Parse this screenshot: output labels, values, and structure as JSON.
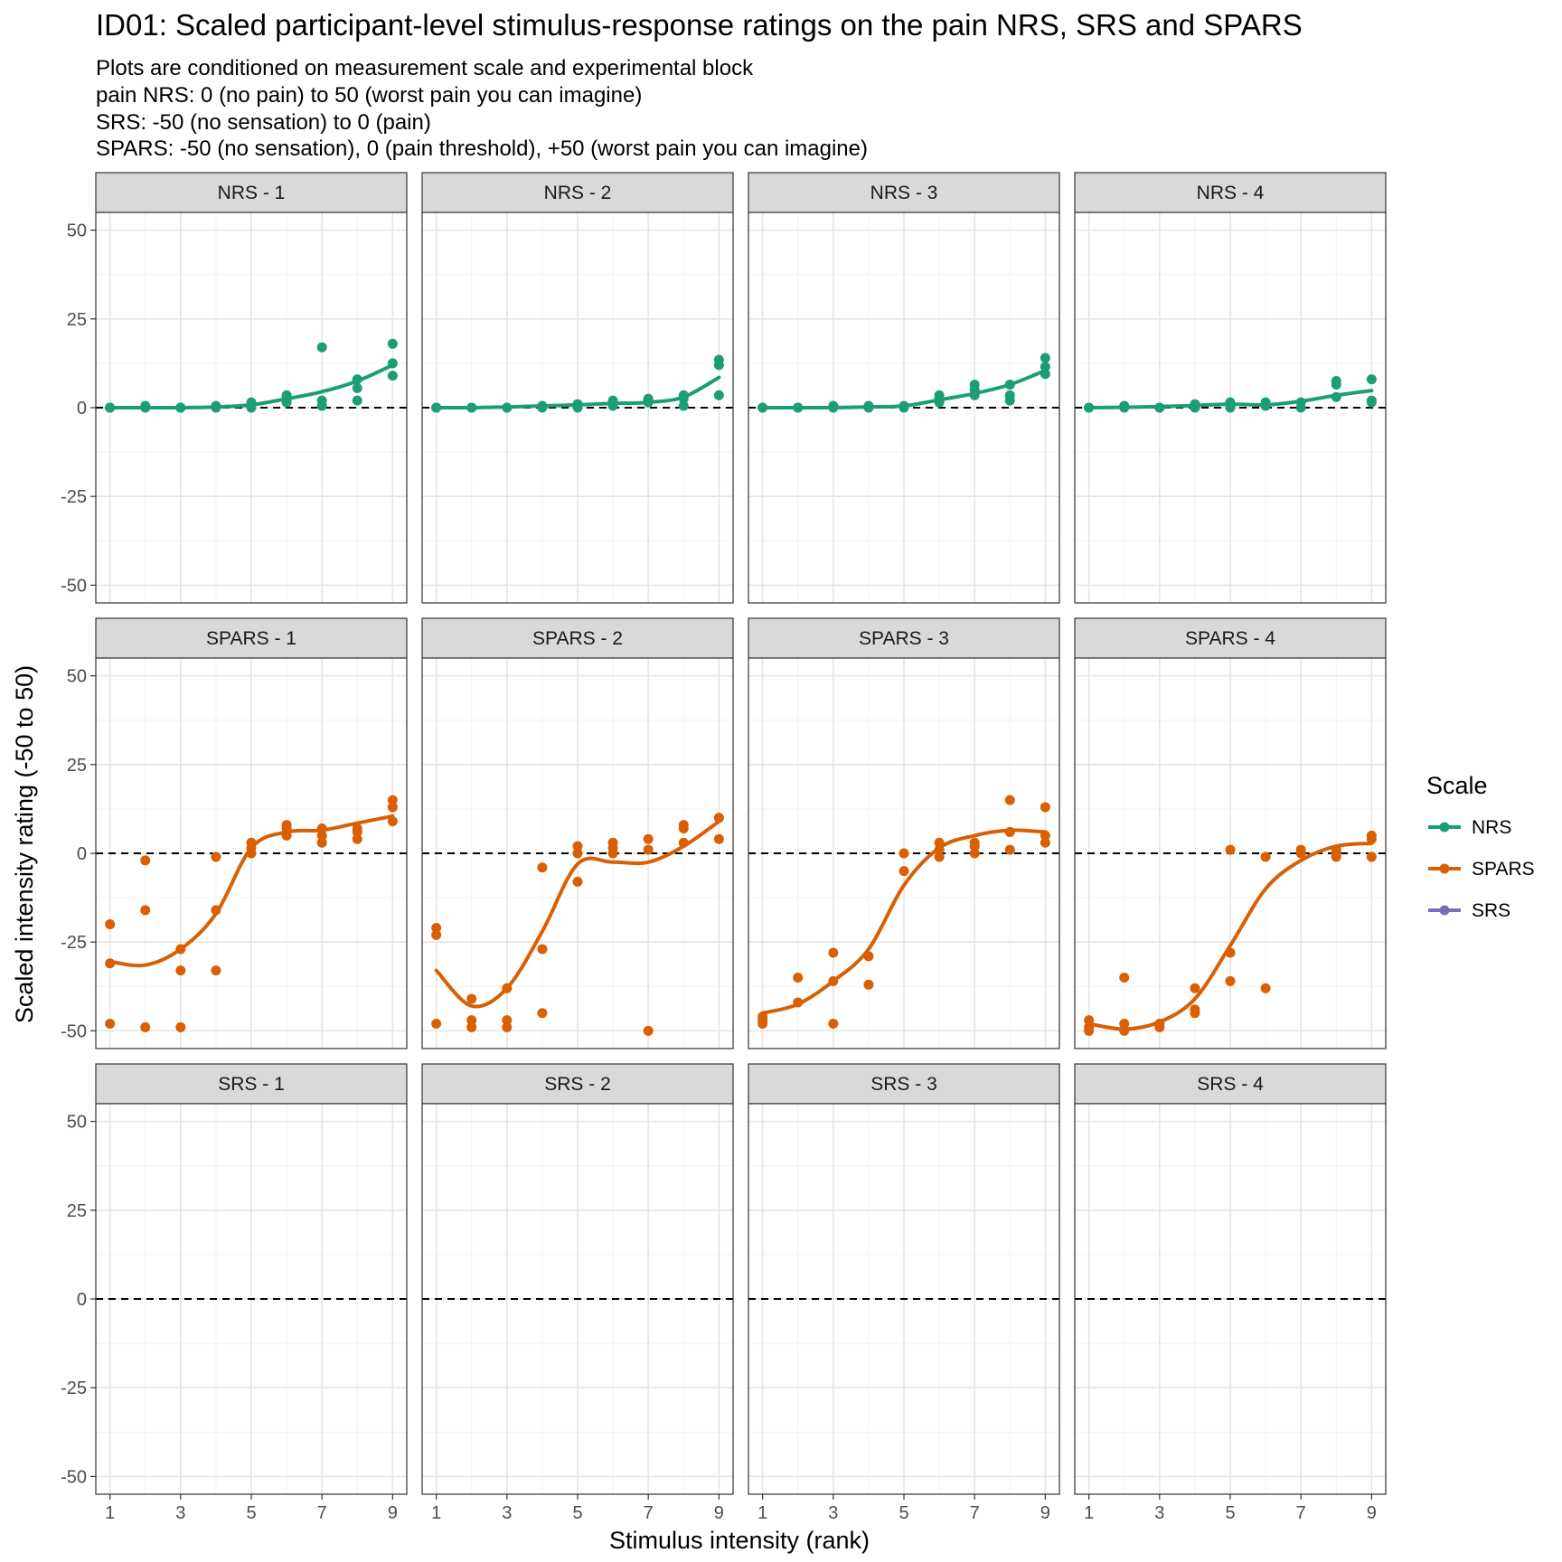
{
  "chart_data": {
    "type": "scatter",
    "title": "ID01: Scaled participant-level stimulus-response ratings on the pain NRS, SRS and SPARS",
    "subtitle_lines": [
      "Plots are conditioned on measurement scale and experimental block",
      "pain NRS: 0 (no pain) to 50 (worst pain you can imagine)",
      "SRS: -50 (no sensation) to 0 (pain)",
      "SPARS: -50 (no sensation), 0 (pain threshold), +50 (worst pain you can imagine)"
    ],
    "xlabel": "Stimulus intensity (rank)",
    "ylabel": "Scaled intensity rating (-50 to 50)",
    "xlim": [
      0.6,
      9.4
    ],
    "ylim": [
      -55,
      55
    ],
    "x_ticks": [
      1,
      3,
      5,
      7,
      9
    ],
    "y_ticks": [
      -50,
      -25,
      0,
      25,
      50
    ],
    "reference_line_y": 0,
    "grid": true,
    "legend": {
      "title": "Scale",
      "position": "right",
      "items": [
        {
          "label": "NRS",
          "color": "#1b9e77"
        },
        {
          "label": "SPARS",
          "color": "#d95f02"
        },
        {
          "label": "SRS",
          "color": "#7570b3"
        }
      ]
    },
    "panels": [
      {
        "label": "NRS - 1",
        "scale": "NRS",
        "points": [
          [
            1,
            0
          ],
          [
            1,
            0
          ],
          [
            1,
            0
          ],
          [
            2,
            0
          ],
          [
            2,
            0.5
          ],
          [
            3,
            0
          ],
          [
            3,
            0
          ],
          [
            4,
            0
          ],
          [
            4,
            0.5
          ],
          [
            5,
            0
          ],
          [
            5,
            1
          ],
          [
            5,
            1.5
          ],
          [
            6,
            1.5
          ],
          [
            6,
            2.5
          ],
          [
            6,
            3.5
          ],
          [
            7,
            0.5
          ],
          [
            7,
            2
          ],
          [
            7,
            17
          ],
          [
            8,
            2
          ],
          [
            8,
            5.5
          ],
          [
            8,
            8
          ],
          [
            9,
            9
          ],
          [
            9,
            12.5
          ],
          [
            9,
            18
          ]
        ],
        "smooth": [
          [
            1,
            0
          ],
          [
            2,
            0
          ],
          [
            3,
            0
          ],
          [
            4,
            0.2
          ],
          [
            5,
            0.8
          ],
          [
            6,
            2.5
          ],
          [
            7,
            4.5
          ],
          [
            8,
            7.5
          ],
          [
            9,
            12
          ]
        ]
      },
      {
        "label": "NRS - 2",
        "scale": "NRS",
        "points": [
          [
            1,
            0
          ],
          [
            1,
            0
          ],
          [
            2,
            0
          ],
          [
            2,
            0
          ],
          [
            3,
            0
          ],
          [
            3,
            0
          ],
          [
            4,
            0
          ],
          [
            4,
            0.5
          ],
          [
            5,
            0
          ],
          [
            5,
            1
          ],
          [
            6,
            0.5
          ],
          [
            6,
            1.5
          ],
          [
            6,
            2
          ],
          [
            7,
            1.5
          ],
          [
            7,
            2
          ],
          [
            7,
            2.5
          ],
          [
            8,
            0.5
          ],
          [
            8,
            2.5
          ],
          [
            8,
            3.5
          ],
          [
            9,
            3.5
          ],
          [
            9,
            12
          ],
          [
            9,
            13.5
          ]
        ],
        "smooth": [
          [
            1,
            0
          ],
          [
            2,
            0
          ],
          [
            3,
            0.2
          ],
          [
            4,
            0.5
          ],
          [
            5,
            0.8
          ],
          [
            6,
            1.2
          ],
          [
            7,
            1.5
          ],
          [
            8,
            3
          ],
          [
            9,
            8.5
          ]
        ]
      },
      {
        "label": "NRS - 3",
        "scale": "NRS",
        "points": [
          [
            1,
            0
          ],
          [
            1,
            0
          ],
          [
            2,
            0
          ],
          [
            2,
            0
          ],
          [
            3,
            0
          ],
          [
            3,
            0.5
          ],
          [
            4,
            0
          ],
          [
            4,
            0.5
          ],
          [
            5,
            0
          ],
          [
            5,
            0.5
          ],
          [
            6,
            1.5
          ],
          [
            6,
            2.5
          ],
          [
            6,
            3.5
          ],
          [
            7,
            3.5
          ],
          [
            7,
            5
          ],
          [
            7,
            6.5
          ],
          [
            8,
            2
          ],
          [
            8,
            3.5
          ],
          [
            8,
            6.5
          ],
          [
            9,
            9.5
          ],
          [
            9,
            11.5
          ],
          [
            9,
            14
          ]
        ],
        "smooth": [
          [
            1,
            0
          ],
          [
            2,
            0
          ],
          [
            3,
            0
          ],
          [
            4,
            0.2
          ],
          [
            5,
            0.5
          ],
          [
            6,
            2.2
          ],
          [
            7,
            4
          ],
          [
            8,
            6.5
          ],
          [
            9,
            10.5
          ]
        ]
      },
      {
        "label": "NRS - 4",
        "scale": "NRS",
        "points": [
          [
            1,
            0
          ],
          [
            1,
            0
          ],
          [
            2,
            0
          ],
          [
            2,
            0.5
          ],
          [
            3,
            0
          ],
          [
            3,
            0
          ],
          [
            4,
            0
          ],
          [
            4,
            0.5
          ],
          [
            4,
            1
          ],
          [
            5,
            0
          ],
          [
            5,
            1
          ],
          [
            5,
            1.5
          ],
          [
            6,
            0.5
          ],
          [
            6,
            1.5
          ],
          [
            7,
            0
          ],
          [
            7,
            1.5
          ],
          [
            8,
            3
          ],
          [
            8,
            6.5
          ],
          [
            8,
            7.5
          ],
          [
            9,
            1.5
          ],
          [
            9,
            2
          ],
          [
            9,
            8
          ]
        ],
        "smooth": [
          [
            1,
            0
          ],
          [
            2,
            0.1
          ],
          [
            3,
            0.3
          ],
          [
            4,
            0.6
          ],
          [
            5,
            1
          ],
          [
            6,
            0.8
          ],
          [
            7,
            1.8
          ],
          [
            8,
            3.5
          ],
          [
            9,
            4.8
          ]
        ]
      },
      {
        "label": "SPARS - 1",
        "scale": "SPARS",
        "points": [
          [
            1,
            -20
          ],
          [
            1,
            -31
          ],
          [
            1,
            -48
          ],
          [
            2,
            -2
          ],
          [
            2,
            -16
          ],
          [
            2,
            -49
          ],
          [
            3,
            -27
          ],
          [
            3,
            -33
          ],
          [
            3,
            -49
          ],
          [
            4,
            -1
          ],
          [
            4,
            -16
          ],
          [
            4,
            -33
          ],
          [
            5,
            0
          ],
          [
            5,
            1.5
          ],
          [
            5,
            3
          ],
          [
            6,
            5
          ],
          [
            6,
            7
          ],
          [
            6,
            8
          ],
          [
            7,
            3
          ],
          [
            7,
            5
          ],
          [
            7,
            7
          ],
          [
            8,
            4
          ],
          [
            8,
            6
          ],
          [
            8,
            7
          ],
          [
            9,
            9
          ],
          [
            9,
            13
          ],
          [
            9,
            15
          ]
        ],
        "smooth": [
          [
            1,
            -30.5
          ],
          [
            2,
            -31.5
          ],
          [
            3,
            -27
          ],
          [
            4,
            -17
          ],
          [
            5,
            1.5
          ],
          [
            6,
            6
          ],
          [
            7,
            6.5
          ],
          [
            8,
            8.5
          ],
          [
            9,
            10.5
          ]
        ]
      },
      {
        "label": "SPARS - 2",
        "scale": "SPARS",
        "points": [
          [
            1,
            -21
          ],
          [
            1,
            -23
          ],
          [
            1,
            -48
          ],
          [
            2,
            -41
          ],
          [
            2,
            -47
          ],
          [
            2,
            -49
          ],
          [
            3,
            -38
          ],
          [
            3,
            -47
          ],
          [
            3,
            -49
          ],
          [
            4,
            -4
          ],
          [
            4,
            -27
          ],
          [
            4,
            -45
          ],
          [
            5,
            -8
          ],
          [
            5,
            0
          ],
          [
            5,
            2
          ],
          [
            6,
            0
          ],
          [
            6,
            1.5
          ],
          [
            6,
            3
          ],
          [
            7,
            -50
          ],
          [
            7,
            1
          ],
          [
            7,
            4
          ],
          [
            8,
            3
          ],
          [
            8,
            7
          ],
          [
            8,
            8
          ],
          [
            9,
            4
          ],
          [
            9,
            10
          ],
          [
            9,
            10
          ]
        ],
        "smooth": [
          [
            1,
            -33
          ],
          [
            2,
            -43
          ],
          [
            3,
            -38
          ],
          [
            4,
            -22
          ],
          [
            5,
            -3
          ],
          [
            6,
            -2.5
          ],
          [
            7,
            -2.5
          ],
          [
            8,
            2
          ],
          [
            9,
            9
          ]
        ]
      },
      {
        "label": "SPARS - 3",
        "scale": "SPARS",
        "points": [
          [
            1,
            -46
          ],
          [
            1,
            -47
          ],
          [
            1,
            -48
          ],
          [
            2,
            -35
          ],
          [
            2,
            -42
          ],
          [
            3,
            -28
          ],
          [
            3,
            -36
          ],
          [
            3,
            -48
          ],
          [
            4,
            -29
          ],
          [
            4,
            -37
          ],
          [
            5,
            0
          ],
          [
            5,
            -5
          ],
          [
            6,
            -1
          ],
          [
            6,
            1
          ],
          [
            6,
            3
          ],
          [
            7,
            0
          ],
          [
            7,
            2
          ],
          [
            7,
            3
          ],
          [
            8,
            1
          ],
          [
            8,
            6
          ],
          [
            8,
            15
          ],
          [
            9,
            3
          ],
          [
            9,
            5
          ],
          [
            9,
            13
          ]
        ],
        "smooth": [
          [
            1,
            -45
          ],
          [
            2,
            -42.5
          ],
          [
            3,
            -36
          ],
          [
            4,
            -27
          ],
          [
            5,
            -9
          ],
          [
            6,
            1.5
          ],
          [
            7,
            5
          ],
          [
            8,
            6.5
          ],
          [
            9,
            6
          ]
        ]
      },
      {
        "label": "SPARS - 4",
        "scale": "SPARS",
        "points": [
          [
            1,
            -47
          ],
          [
            1,
            -49
          ],
          [
            1,
            -50
          ],
          [
            2,
            -35
          ],
          [
            2,
            -48
          ],
          [
            2,
            -50
          ],
          [
            3,
            -48
          ],
          [
            3,
            -49
          ],
          [
            4,
            -38
          ],
          [
            4,
            -44
          ],
          [
            4,
            -45
          ],
          [
            5,
            1
          ],
          [
            5,
            -28
          ],
          [
            5,
            -36
          ],
          [
            6,
            -1
          ],
          [
            6,
            -38
          ],
          [
            7,
            0
          ],
          [
            7,
            1
          ],
          [
            8,
            -1
          ],
          [
            8,
            0
          ],
          [
            8,
            1
          ],
          [
            9,
            -1
          ],
          [
            9,
            4
          ],
          [
            9,
            5
          ]
        ],
        "smooth": [
          [
            1,
            -48
          ],
          [
            2,
            -49.5
          ],
          [
            3,
            -47.5
          ],
          [
            4,
            -41
          ],
          [
            5,
            -26
          ],
          [
            6,
            -10
          ],
          [
            7,
            -2
          ],
          [
            8,
            2
          ],
          [
            9,
            2.8
          ]
        ]
      },
      {
        "label": "SRS - 1",
        "scale": "SRS",
        "points": [],
        "smooth": []
      },
      {
        "label": "SRS - 2",
        "scale": "SRS",
        "points": [],
        "smooth": []
      },
      {
        "label": "SRS - 3",
        "scale": "SRS",
        "points": [],
        "smooth": []
      },
      {
        "label": "SRS - 4",
        "scale": "SRS",
        "points": [],
        "smooth": []
      }
    ]
  }
}
